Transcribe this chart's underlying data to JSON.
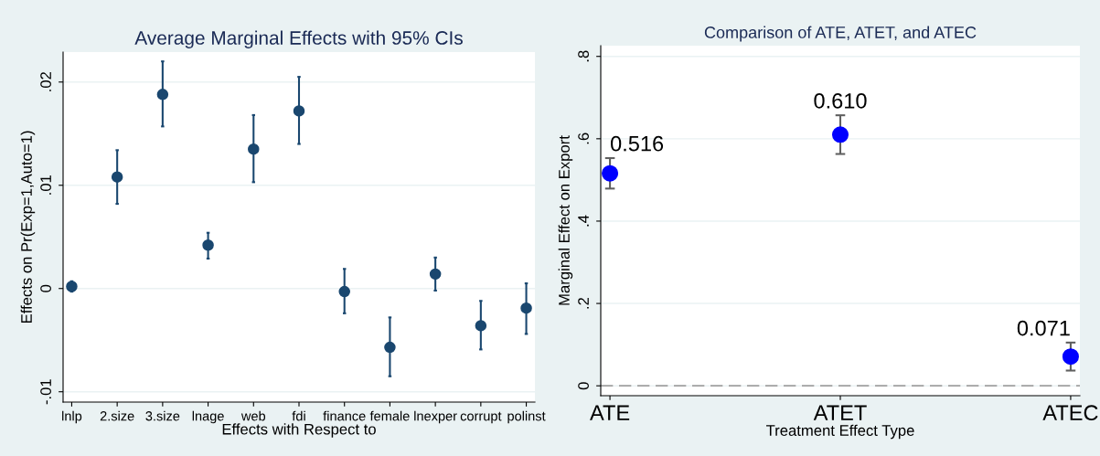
{
  "chart_data": [
    {
      "type": "scatter",
      "title": "Average Marginal Effects with 95% CIs",
      "xlabel": "Effects with Respect to",
      "ylabel": "Effects on Pr(Exp=1,Auto=1)",
      "categories": [
        "lnlp",
        "2.size",
        "3.size",
        "lnage",
        "web",
        "fdi",
        "finance",
        "female",
        "lnexper",
        "corrupt",
        "polinst"
      ],
      "series": [
        {
          "color": "#1a476f",
          "values": [
            0.0002,
            0.0108,
            0.0188,
            0.0042,
            0.0135,
            0.0172,
            -0.0003,
            -0.0057,
            0.0014,
            -0.0036,
            -0.0019
          ],
          "errors": [
            [
              -0.0003,
              0.0007
            ],
            [
              0.0082,
              0.0134
            ],
            [
              0.0157,
              0.022
            ],
            [
              0.0029,
              0.0054
            ],
            [
              0.0103,
              0.0168
            ],
            [
              0.014,
              0.0205
            ],
            [
              -0.0024,
              0.0019
            ],
            [
              -0.0085,
              -0.0028
            ],
            [
              -0.0002,
              0.003
            ],
            [
              -0.0059,
              -0.0012
            ],
            [
              -0.0044,
              0.0005
            ]
          ]
        }
      ],
      "ylim": [
        -0.011,
        0.0229
      ],
      "yticks": [
        {
          "value": -0.01,
          "label": "-.01"
        },
        0,
        {
          "value": 0.01,
          "label": ".01"
        },
        {
          "value": 0.02,
          "label": ".02"
        }
      ],
      "grid": "y",
      "marker": "circle"
    },
    {
      "type": "scatter",
      "title": "Comparison of ATE, ATET, and ATEC",
      "xlabel": "Treatment Effect Type",
      "ylabel": "Marginal Effect on Export",
      "categories": [
        "ATE",
        "ATET",
        "ATEC"
      ],
      "series": [
        {
          "color": "#0000ff",
          "values": [
            0.516,
            0.61,
            0.071
          ],
          "value_labels": [
            "0.516",
            "0.610",
            "0.071"
          ],
          "errors": [
            [
              0.479,
              0.553
            ],
            [
              0.563,
              0.657
            ],
            [
              0.037,
              0.105
            ]
          ]
        }
      ],
      "ylim": [
        -0.024,
        0.826
      ],
      "yticks": [
        0,
        {
          "value": 0.2,
          "label": ".2"
        },
        {
          "value": 0.4,
          "label": ".4"
        },
        {
          "value": 0.6,
          "label": ".6"
        },
        {
          "value": 0.8,
          "label": ".8"
        }
      ],
      "grid": "y",
      "marker": "circle",
      "ref_lines": [
        {
          "axis": "y",
          "value": 0,
          "color": "#a0a0a0",
          "line_style": "dashed"
        }
      ]
    }
  ]
}
